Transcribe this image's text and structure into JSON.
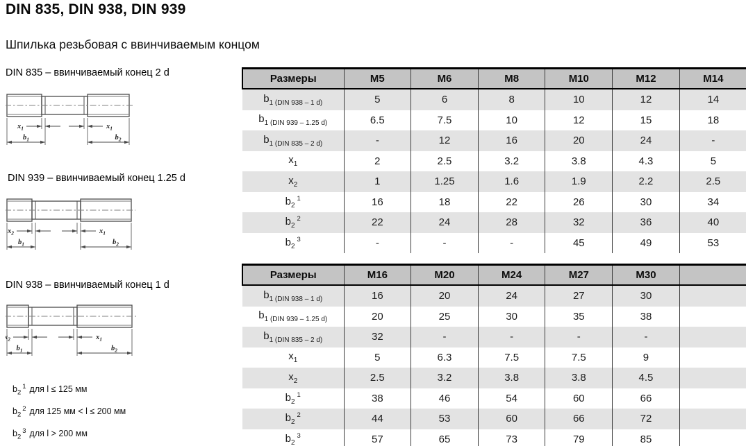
{
  "page": {
    "title": "DIN 835, DIN 938, DIN 939",
    "subtitle": "Шпилька резьбовая с ввинчиваемым концом"
  },
  "diagrams": [
    {
      "label": "DIN 835 – ввинчиваемый конец 2 d",
      "dims": {
        "left_x": {
          "base": "x",
          "sub": "1"
        },
        "right_x": {
          "base": "x",
          "sub": "1"
        },
        "left_b": {
          "base": "b",
          "sub": "1"
        },
        "right_b": {
          "base": "b",
          "sub": "2"
        }
      }
    },
    {
      "label": "DIN 939 – ввинчиваемый конец 1.25 d",
      "dims": {
        "left_x": {
          "base": "x",
          "sub": "2"
        },
        "right_x": {
          "base": "x",
          "sub": "1"
        },
        "left_b": {
          "base": "b",
          "sub": "1"
        },
        "right_b": {
          "base": "b",
          "sub": "2"
        }
      }
    },
    {
      "label": "DIN 938 – ввинчиваемый конец 1 d",
      "dims": {
        "left_x": {
          "base": "x",
          "sub": "2"
        },
        "right_x": {
          "base": "x",
          "sub": "1"
        },
        "left_b": {
          "base": "b",
          "sub": "1"
        },
        "right_b": {
          "base": "b",
          "sub": "2"
        }
      }
    }
  ],
  "tables": [
    {
      "header_label": "Размеры",
      "columns": [
        "M5",
        "M6",
        "M8",
        "M10",
        "M12",
        "M14"
      ],
      "rows": [
        {
          "label": {
            "base": "b",
            "sub": "1 (DIN 938 – 1 d)"
          },
          "values": [
            "5",
            "6",
            "8",
            "10",
            "12",
            "14"
          ]
        },
        {
          "label": {
            "base": "b",
            "sub": "1 (DIN 939 – 1.25 d)"
          },
          "values": [
            "6.5",
            "7.5",
            "10",
            "12",
            "15",
            "18"
          ]
        },
        {
          "label": {
            "base": "b",
            "sub": "1 (DIN 835 – 2 d)"
          },
          "values": [
            "-",
            "12",
            "16",
            "20",
            "24",
            "-"
          ]
        },
        {
          "label": {
            "base": "x",
            "sub": "1"
          },
          "values": [
            "2",
            "2.5",
            "3.2",
            "3.8",
            "4.3",
            "5"
          ]
        },
        {
          "label": {
            "base": "x",
            "sub": "2"
          },
          "values": [
            "1",
            "1.25",
            "1.6",
            "1.9",
            "2.2",
            "2.5"
          ]
        },
        {
          "label": {
            "base": "b",
            "sub": "2",
            "sup": "1"
          },
          "values": [
            "16",
            "18",
            "22",
            "26",
            "30",
            "34"
          ]
        },
        {
          "label": {
            "base": "b",
            "sub": "2",
            "sup": "2"
          },
          "values": [
            "22",
            "24",
            "28",
            "32",
            "36",
            "40"
          ]
        },
        {
          "label": {
            "base": "b",
            "sub": "2",
            "sup": "3"
          },
          "values": [
            "-",
            "-",
            "-",
            "45",
            "49",
            "53"
          ]
        }
      ]
    },
    {
      "header_label": "Размеры",
      "columns": [
        "M16",
        "M20",
        "M24",
        "M27",
        "M30",
        ""
      ],
      "rows": [
        {
          "label": {
            "base": "b",
            "sub": "1 (DIN 938 – 1 d)"
          },
          "values": [
            "16",
            "20",
            "24",
            "27",
            "30",
            ""
          ]
        },
        {
          "label": {
            "base": "b",
            "sub": "1 (DIN 939 – 1.25 d)"
          },
          "values": [
            "20",
            "25",
            "30",
            "35",
            "38",
            ""
          ]
        },
        {
          "label": {
            "base": "b",
            "sub": "1 (DIN 835 – 2 d)"
          },
          "values": [
            "32",
            "-",
            "-",
            "-",
            "-",
            ""
          ]
        },
        {
          "label": {
            "base": "x",
            "sub": "1"
          },
          "values": [
            "5",
            "6.3",
            "7.5",
            "7.5",
            "9",
            ""
          ]
        },
        {
          "label": {
            "base": "x",
            "sub": "2"
          },
          "values": [
            "2.5",
            "3.2",
            "3.8",
            "3.8",
            "4.5",
            ""
          ]
        },
        {
          "label": {
            "base": "b",
            "sub": "2",
            "sup": "1"
          },
          "values": [
            "38",
            "46",
            "54",
            "60",
            "66",
            ""
          ]
        },
        {
          "label": {
            "base": "b",
            "sub": "2",
            "sup": "2"
          },
          "values": [
            "44",
            "53",
            "60",
            "66",
            "72",
            ""
          ]
        },
        {
          "label": {
            "base": "b",
            "sub": "2",
            "sup": "3"
          },
          "values": [
            "57",
            "65",
            "73",
            "79",
            "85",
            ""
          ]
        }
      ]
    }
  ],
  "footnotes": [
    {
      "base": "b",
      "sub": "2",
      "sup": "1",
      "text": "для l ≤ 125 мм"
    },
    {
      "base": "b",
      "sub": "2",
      "sup": "2",
      "text": "для 125 мм < l ≤ 200 мм"
    },
    {
      "base": "b",
      "sub": "2",
      "sup": "3",
      "text": "для l > 200 мм"
    }
  ],
  "colors": {
    "header_bg": "#c4c4c4",
    "stripe_bg": "#e3e3e3",
    "table_border": "#000000",
    "column_divider": "#3a3a3a",
    "drawing_line": "#4a4a4a"
  }
}
